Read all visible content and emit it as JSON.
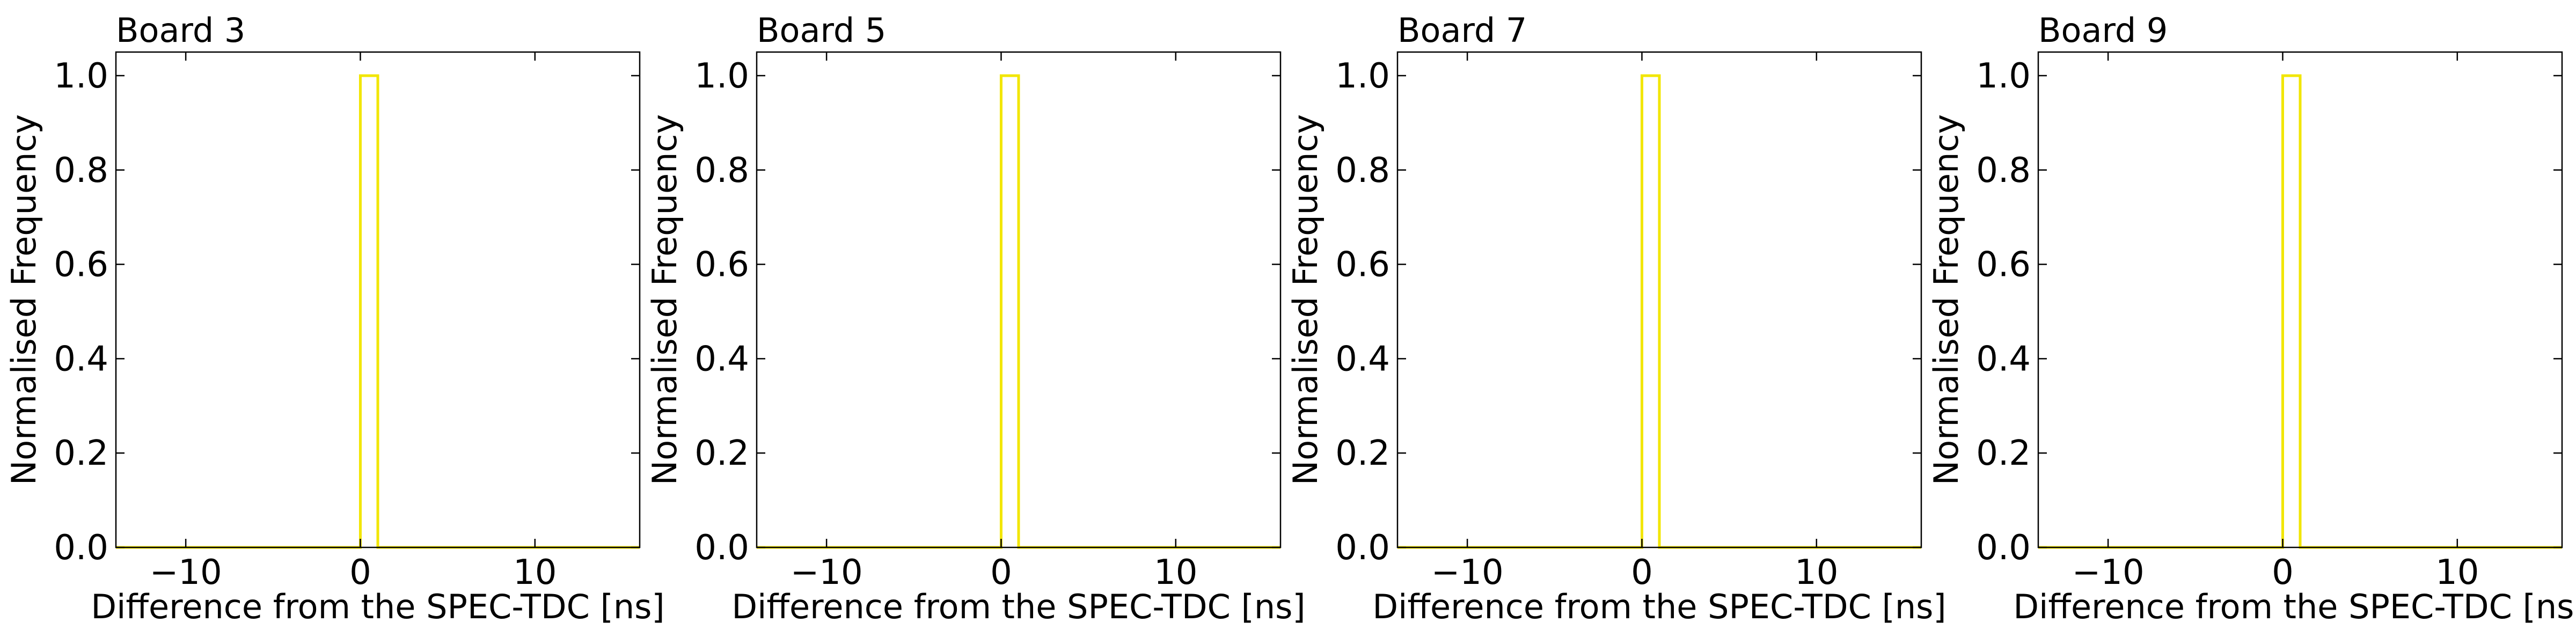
{
  "chart_data": [
    {
      "type": "step",
      "title": "Board 3",
      "xlabel": "Difference from the SPEC-TDC [ns]",
      "ylabel": "Normalised Frequency",
      "xlim": [
        -14,
        16
      ],
      "ylim": [
        0,
        1.05
      ],
      "xticks": [
        -10,
        0,
        10
      ],
      "xtick_labels": [
        "−10",
        "0",
        "10"
      ],
      "yticks": [
        0,
        0.2,
        0.4,
        0.6,
        0.8,
        1.0
      ],
      "ytick_labels": [
        "0.0",
        "0.2",
        "0.4",
        "0.6",
        "0.8",
        "1.0"
      ],
      "grid": false,
      "tick_direction": "in",
      "series": [
        {
          "color": "#f2e600",
          "bin_edges": [
            -14,
            0,
            1,
            16
          ],
          "values": [
            0,
            1.0,
            0
          ]
        }
      ]
    },
    {
      "type": "step",
      "title": "Board 5",
      "xlabel": "Difference from the SPEC-TDC [ns]",
      "ylabel": "Normalised Frequency",
      "xlim": [
        -14,
        16
      ],
      "ylim": [
        0,
        1.05
      ],
      "xticks": [
        -10,
        0,
        10
      ],
      "xtick_labels": [
        "−10",
        "0",
        "10"
      ],
      "yticks": [
        0,
        0.2,
        0.4,
        0.6,
        0.8,
        1.0
      ],
      "ytick_labels": [
        "0.0",
        "0.2",
        "0.4",
        "0.6",
        "0.8",
        "1.0"
      ],
      "grid": false,
      "tick_direction": "in",
      "series": [
        {
          "color": "#f2e600",
          "bin_edges": [
            -14,
            0,
            1,
            16
          ],
          "values": [
            0,
            1.0,
            0
          ]
        }
      ]
    },
    {
      "type": "step",
      "title": "Board 7",
      "xlabel": "Difference from the SPEC-TDC [ns]",
      "ylabel": "Normalised Frequency",
      "xlim": [
        -14,
        16
      ],
      "ylim": [
        0,
        1.05
      ],
      "xticks": [
        -10,
        0,
        10
      ],
      "xtick_labels": [
        "−10",
        "0",
        "10"
      ],
      "yticks": [
        0,
        0.2,
        0.4,
        0.6,
        0.8,
        1.0
      ],
      "ytick_labels": [
        "0.0",
        "0.2",
        "0.4",
        "0.6",
        "0.8",
        "1.0"
      ],
      "grid": false,
      "tick_direction": "in",
      "series": [
        {
          "color": "#f2e600",
          "bin_edges": [
            -14,
            0,
            1,
            16
          ],
          "values": [
            0,
            1.0,
            0
          ]
        }
      ]
    },
    {
      "type": "step",
      "title": "Board 9",
      "xlabel": "Difference from the SPEC-TDC [ns]",
      "ylabel": "Normalised Frequency",
      "xlim": [
        -14,
        16
      ],
      "ylim": [
        0,
        1.05
      ],
      "xticks": [
        -10,
        0,
        10
      ],
      "xtick_labels": [
        "−10",
        "0",
        "10"
      ],
      "yticks": [
        0,
        0.2,
        0.4,
        0.6,
        0.8,
        1.0
      ],
      "ytick_labels": [
        "0.0",
        "0.2",
        "0.4",
        "0.6",
        "0.8",
        "1.0"
      ],
      "grid": false,
      "tick_direction": "in",
      "series": [
        {
          "color": "#f2e600",
          "bin_edges": [
            -14,
            0,
            1,
            16
          ],
          "values": [
            0,
            1.0,
            0
          ]
        }
      ]
    }
  ]
}
